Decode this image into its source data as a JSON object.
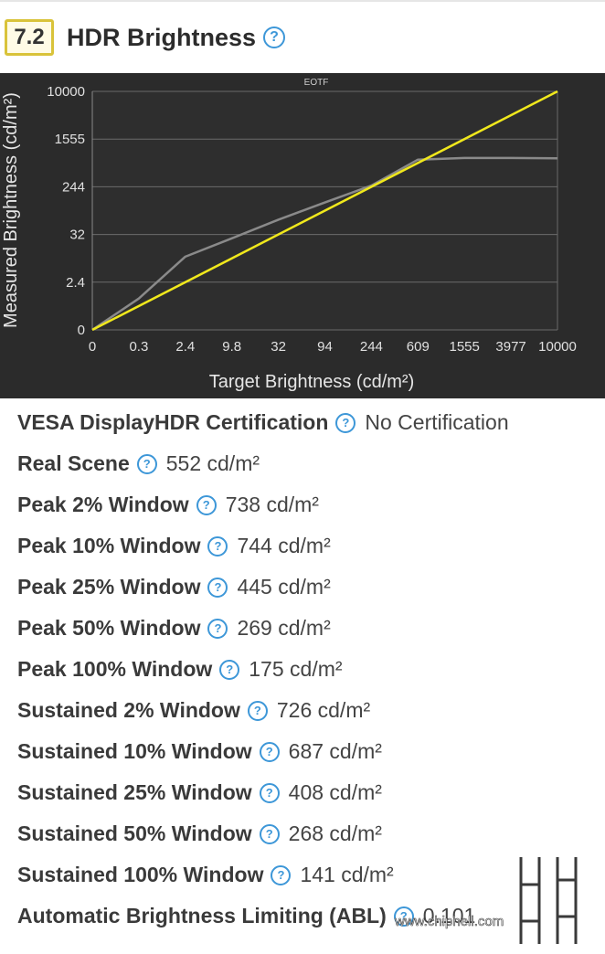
{
  "header": {
    "section_number": "7.2",
    "title": "HDR Brightness",
    "help_glyph": "?"
  },
  "chart_data": {
    "type": "line",
    "title": "EOTF",
    "xlabel": "Target Brightness (cd/m²)",
    "ylabel": "Measured Brightness (cd/m²)",
    "x_ticks": [
      "0",
      "0.3",
      "2.4",
      "9.8",
      "32",
      "94",
      "244",
      "609",
      "1555",
      "3977",
      "10000"
    ],
    "y_ticks": [
      "0",
      "2.4",
      "32",
      "244",
      "1555",
      "10000"
    ],
    "grid": true,
    "series": [
      {
        "color": "#8a8a8a",
        "x": [
          "0",
          "0.3",
          "2.4",
          "9.8",
          "32",
          "94",
          "244",
          "609",
          "1555",
          "3977",
          "10000"
        ],
        "y": [
          0,
          1.3,
          9.6,
          26,
          60,
          125,
          256,
          700,
          747,
          748,
          738
        ]
      },
      {
        "color": "#f0e81c",
        "x": [
          "0",
          "10000"
        ],
        "y": [
          0,
          10000
        ]
      }
    ]
  },
  "measurements": [
    {
      "label": "VESA DisplayHDR Certification",
      "value": "No Certification"
    },
    {
      "label": "Real Scene",
      "value": "552 cd/m²"
    },
    {
      "label": "Peak 2% Window",
      "value": "738 cd/m²"
    },
    {
      "label": "Peak 10% Window",
      "value": "744 cd/m²"
    },
    {
      "label": "Peak 25% Window",
      "value": "445 cd/m²"
    },
    {
      "label": "Peak 50% Window",
      "value": "269 cd/m²"
    },
    {
      "label": "Peak 100% Window",
      "value": "175 cd/m²"
    },
    {
      "label": "Sustained 2% Window",
      "value": "726 cd/m²"
    },
    {
      "label": "Sustained 10% Window",
      "value": "687 cd/m²"
    },
    {
      "label": "Sustained 25% Window",
      "value": "408 cd/m²"
    },
    {
      "label": "Sustained 50% Window",
      "value": "268 cd/m²"
    },
    {
      "label": "Sustained 100% Window",
      "value": "141 cd/m²"
    },
    {
      "label": "Automatic Brightness Limiting (ABL)",
      "value": "0.101"
    }
  ],
  "watermark": {
    "brand": "chip hell",
    "url": "www.chiphell.com"
  }
}
